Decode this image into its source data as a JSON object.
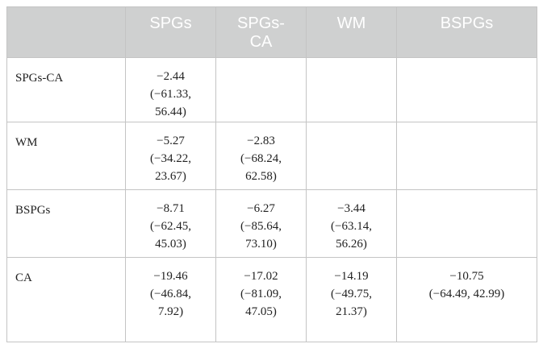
{
  "table": {
    "header": {
      "corner": "",
      "columns": [
        "SPGs",
        "SPGs-\nCA",
        "WM",
        "BSPGs"
      ]
    },
    "rows": [
      {
        "label": "SPGs-CA",
        "cells": [
          "−2.44\n(−61.33,\n56.44)",
          "",
          "",
          ""
        ]
      },
      {
        "label": "WM",
        "cells": [
          "−5.27\n(−34.22,\n23.67)",
          "−2.83\n(−68.24,\n62.58)",
          "",
          ""
        ]
      },
      {
        "label": "BSPGs",
        "cells": [
          "−8.71\n(−62.45,\n45.03)",
          "−6.27\n(−85.64,\n73.10)",
          "−3.44\n(−63.14,\n56.26)",
          ""
        ]
      },
      {
        "label": "CA",
        "cells": [
          "−19.46\n(−46.84,\n7.92)",
          "−17.02\n(−81.09,\n47.05)",
          "−14.19\n(−49.75,\n21.37)",
          "−10.75\n(−64.49, 42.99)"
        ]
      }
    ]
  }
}
